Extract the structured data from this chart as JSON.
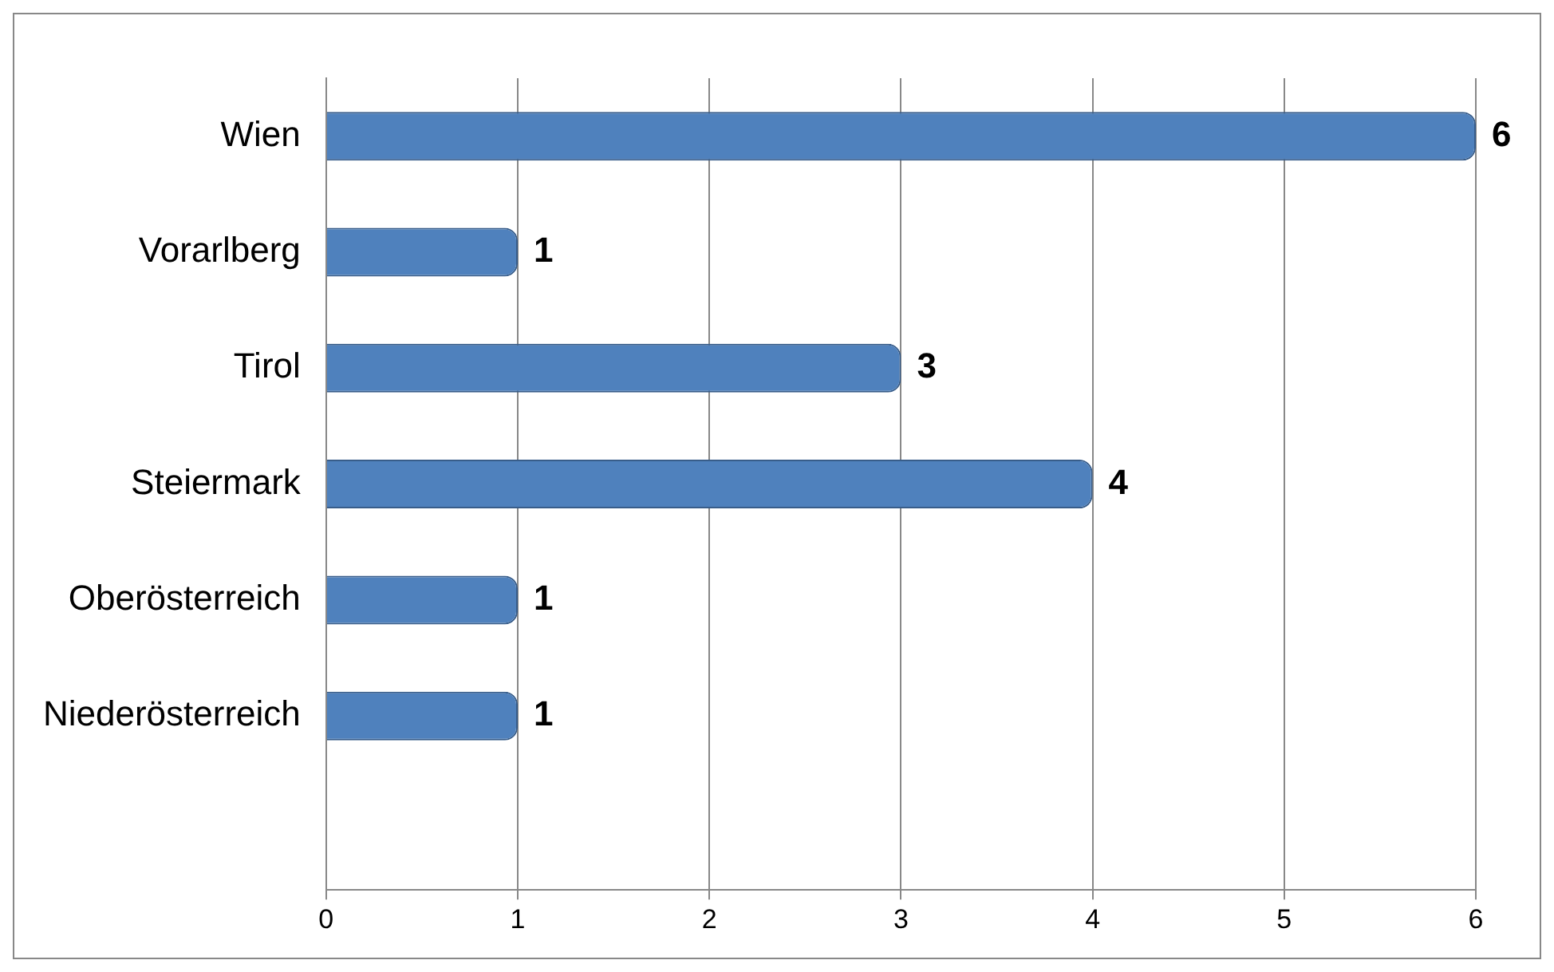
{
  "chart_data": {
    "type": "bar",
    "orientation": "horizontal",
    "categories": [
      "Wien",
      "Vorarlberg",
      "Tirol",
      "Steiermark",
      "Oberösterreich",
      "Niederösterreich",
      null
    ],
    "values": [
      6,
      1,
      3,
      4,
      1,
      1,
      null
    ],
    "color": "#4f81bd",
    "xlim": [
      0,
      6
    ],
    "xticks": [
      0,
      1,
      2,
      3,
      4,
      5,
      6
    ],
    "grid": "x",
    "legend": false,
    "data_labels": true
  }
}
